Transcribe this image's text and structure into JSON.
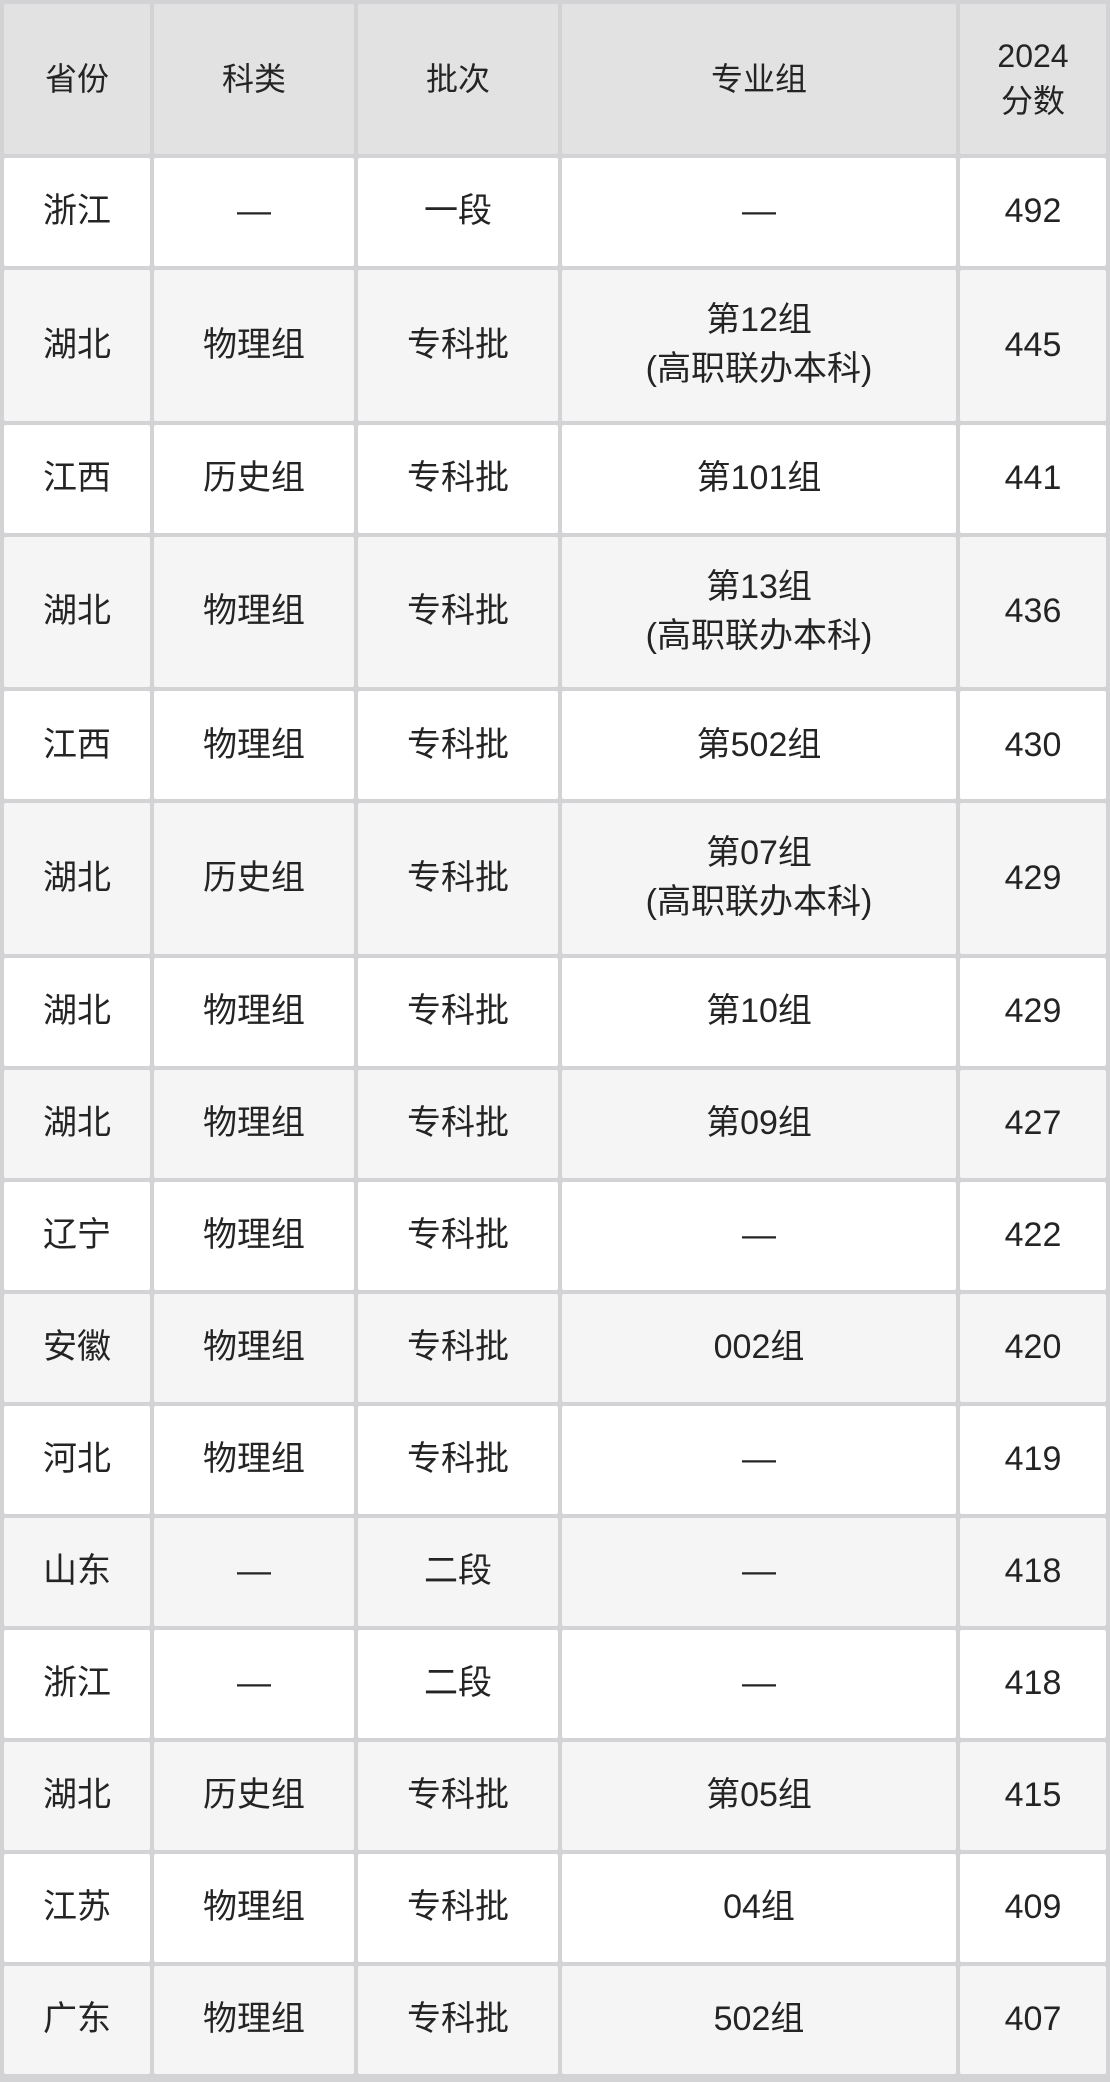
{
  "chart_data": {
    "type": "table",
    "title": "",
    "columns": [
      "省份",
      "科类",
      "批次",
      "专业组",
      "2024\n分数"
    ],
    "rows": [
      [
        "浙江",
        "—",
        "一段",
        "—",
        "492"
      ],
      [
        "湖北",
        "物理组",
        "专科批",
        "第12组\n(高职联办本科)",
        "445"
      ],
      [
        "江西",
        "历史组",
        "专科批",
        "第101组",
        "441"
      ],
      [
        "湖北",
        "物理组",
        "专科批",
        "第13组\n(高职联办本科)",
        "436"
      ],
      [
        "江西",
        "物理组",
        "专科批",
        "第502组",
        "430"
      ],
      [
        "湖北",
        "历史组",
        "专科批",
        "第07组\n(高职联办本科)",
        "429"
      ],
      [
        "湖北",
        "物理组",
        "专科批",
        "第10组",
        "429"
      ],
      [
        "湖北",
        "物理组",
        "专科批",
        "第09组",
        "427"
      ],
      [
        "辽宁",
        "物理组",
        "专科批",
        "—",
        "422"
      ],
      [
        "安徽",
        "物理组",
        "专科批",
        "002组",
        "420"
      ],
      [
        "河北",
        "物理组",
        "专科批",
        "—",
        "419"
      ],
      [
        "山东",
        "—",
        "二段",
        "—",
        "418"
      ],
      [
        "浙江",
        "—",
        "二段",
        "—",
        "418"
      ],
      [
        "湖北",
        "历史组",
        "专科批",
        "第05组",
        "415"
      ],
      [
        "江苏",
        "物理组",
        "专科批",
        "04组",
        "409"
      ],
      [
        "广东",
        "物理组",
        "专科批",
        "502组",
        "407"
      ]
    ],
    "layout": {
      "grid": true,
      "header_rows": 1,
      "striped": true
    }
  },
  "colors": {
    "header_bg": "#e2e2e2",
    "row_bg": "#ffffff",
    "row_alt_bg": "#f5f5f6",
    "border": "#d3d3d5",
    "text": "#242424"
  }
}
